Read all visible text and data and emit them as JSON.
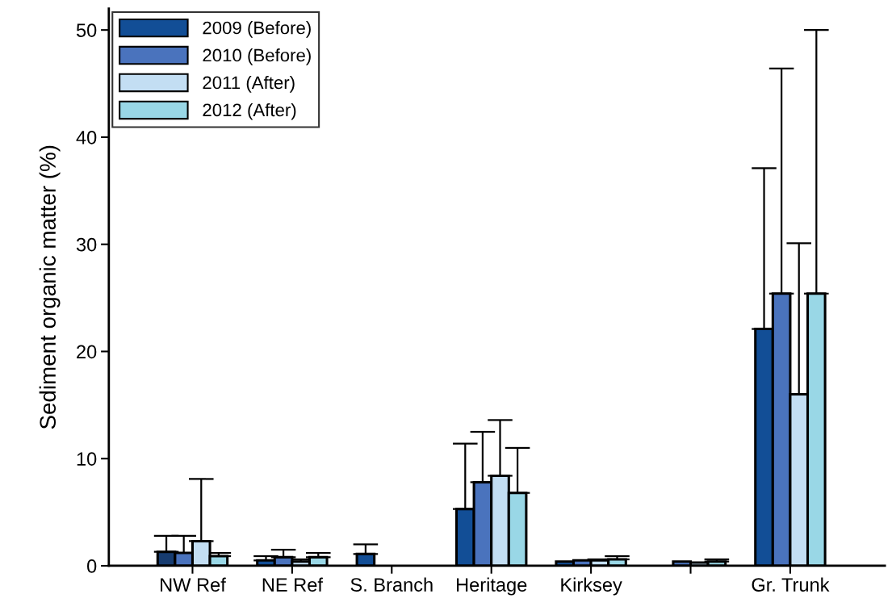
{
  "chart_data": {
    "type": "bar",
    "ylabel": "Sediment organic matter (%)",
    "categories": [
      "NW Ref",
      "NE Ref",
      "S. Branch",
      "Heritage",
      "Kirksey",
      null,
      "Gr. Trunk"
    ],
    "series": [
      {
        "name": "2009 (Before)",
        "color": "#124e96",
        "colors": [
          "#173c70",
          "#124e96",
          "#124e96",
          "#124e96",
          "#124e96",
          "#124e96",
          "#124e96"
        ],
        "values": [
          1.3,
          0.5,
          1.1,
          5.3,
          0.4,
          null,
          22.1
        ],
        "errors": [
          [
            1.3,
            2.8
          ],
          [
            0.5,
            0.9
          ],
          [
            1.1,
            2.0
          ],
          [
            5.3,
            11.4
          ],
          null,
          null,
          [
            22.1,
            37.1
          ]
        ]
      },
      {
        "name": "2010 (Before)",
        "color": "#4a73bd",
        "values": [
          1.2,
          0.8,
          null,
          7.8,
          0.5,
          0.4,
          25.4
        ],
        "errors": [
          [
            1.2,
            2.8
          ],
          [
            0.8,
            1.5
          ],
          null,
          [
            7.8,
            12.5
          ],
          null,
          null,
          [
            25.4,
            46.4
          ]
        ]
      },
      {
        "name": "2011 (After)",
        "color": "#c3def3",
        "values": [
          2.3,
          0.4,
          null,
          8.4,
          0.5,
          0.3,
          16.0
        ],
        "errors": [
          [
            2.3,
            8.1
          ],
          [
            0.4,
            0.6
          ],
          null,
          [
            8.4,
            13.6
          ],
          [
            0.5,
            0.6
          ],
          null,
          [
            16.0,
            30.1
          ]
        ]
      },
      {
        "name": "2012 (After)",
        "color": "#99d7e6",
        "values": [
          0.9,
          0.8,
          null,
          6.8,
          0.6,
          0.4,
          25.4
        ],
        "errors": [
          [
            0.9,
            1.2
          ],
          [
            0.8,
            1.2
          ],
          null,
          [
            6.8,
            11.0
          ],
          [
            0.6,
            0.9
          ],
          [
            0.4,
            0.6
          ],
          [
            25.4,
            50.0
          ]
        ]
      }
    ],
    "ylim": [
      0,
      52
    ],
    "yticks": [
      0,
      10,
      20,
      30,
      40,
      50
    ],
    "legend": "top left",
    "grid": false
  }
}
